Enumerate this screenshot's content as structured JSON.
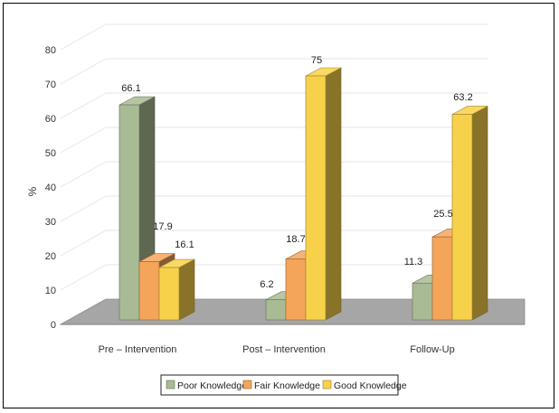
{
  "chart_data": {
    "type": "bar",
    "title": "",
    "xlabel": "",
    "ylabel": "%",
    "ylim": [
      0,
      80
    ],
    "yticks": [
      0,
      10,
      20,
      30,
      40,
      50,
      60,
      70,
      80
    ],
    "categories": [
      "Pre – Intervention",
      "Post – Intervention",
      "Follow-Up"
    ],
    "series": [
      {
        "name": "Poor Knowledge",
        "values": [
          66.1,
          6.2,
          11.3
        ],
        "color": "#a9bb94"
      },
      {
        "name": "Fair Knowledge",
        "values": [
          17.9,
          18.7,
          25.5
        ],
        "color": "#f4a55a"
      },
      {
        "name": "Good Knowledge",
        "values": [
          16.1,
          75,
          63.2
        ],
        "color": "#f8d14a"
      }
    ],
    "grid": true,
    "legend": "bottom",
    "style": "3d-clustered-column"
  }
}
